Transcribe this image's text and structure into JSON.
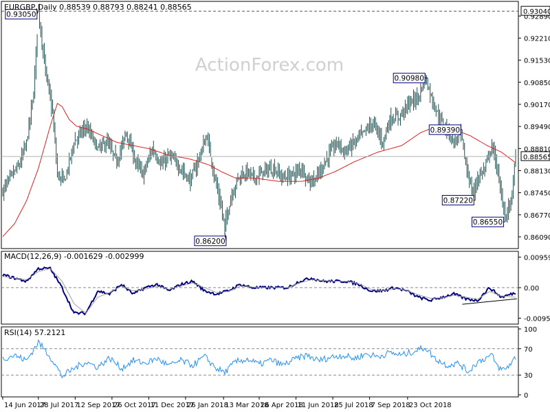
{
  "symbol_header": "EURGBP,Daily  0.88539 0.88793 0.88241 0.88565",
  "watermark": "ActionForex.com",
  "colors": {
    "candle": "#1f4f4f",
    "ma": "#e01e1e",
    "macd": "#000080",
    "signal": "#a0a0a0",
    "rsi": "#1e90ff",
    "label_border": "#000080",
    "last_price_bg": "#ffffff"
  },
  "chart_data": [
    {
      "type": "candlestick",
      "title": "EURGBP,Daily",
      "ohlc_last": {
        "open": 0.88539,
        "high": 0.88793,
        "low": 0.88241,
        "close": 0.88565
      },
      "ylim": [
        0.8573,
        0.9334
      ],
      "y_ticks": [
        "0.92890",
        "0.92210",
        "0.91530",
        "0.90850",
        "0.90170",
        "0.89490",
        "0.88810",
        "0.88130",
        "0.87450",
        "0.86770",
        "0.86090"
      ],
      "x_ticks": [
        "14 Jun 2017",
        "28 Jul 2017",
        "12 Sep 2017",
        "26 Oct 2017",
        "11 Dec 2017",
        "26 Jan 2018",
        "13 Mar 2018",
        "26 Apr 2018",
        "11 Jun 2018",
        "25 Jul 2018",
        "7 Sep 2018",
        "23 Oct 2018"
      ],
      "hlines": [
        {
          "value": 0.9304,
          "label": "0.93040"
        },
        {
          "value": 0.88565,
          "label": "0.88565"
        }
      ],
      "annotations": [
        {
          "label": "0.93050",
          "value": 0.9305,
          "date_index": 30
        },
        {
          "label": "0.86200",
          "value": 0.862,
          "date_index": 187
        },
        {
          "label": "0.90980",
          "value": 0.9098,
          "date_index": 358
        },
        {
          "label": "0.89390",
          "value": 0.8939,
          "date_index": 387
        },
        {
          "label": "0.87220",
          "value": 0.8722,
          "date_index": 398
        },
        {
          "label": "0.86550",
          "value": 0.8655,
          "date_index": 423
        }
      ],
      "price_anchors": [
        [
          0,
          0.875
        ],
        [
          6,
          0.879
        ],
        [
          14,
          0.883
        ],
        [
          20,
          0.89
        ],
        [
          26,
          0.905
        ],
        [
          30,
          0.9305
        ],
        [
          36,
          0.912
        ],
        [
          42,
          0.899
        ],
        [
          46,
          0.88
        ],
        [
          52,
          0.878
        ],
        [
          60,
          0.89
        ],
        [
          70,
          0.895
        ],
        [
          80,
          0.888
        ],
        [
          88,
          0.89
        ],
        [
          96,
          0.884
        ],
        [
          104,
          0.893
        ],
        [
          112,
          0.884
        ],
        [
          118,
          0.88
        ],
        [
          126,
          0.888
        ],
        [
          134,
          0.883
        ],
        [
          140,
          0.886
        ],
        [
          150,
          0.882
        ],
        [
          158,
          0.878
        ],
        [
          166,
          0.886
        ],
        [
          172,
          0.892
        ],
        [
          178,
          0.88
        ],
        [
          184,
          0.87
        ],
        [
          187,
          0.864
        ],
        [
          192,
          0.873
        ],
        [
          198,
          0.879
        ],
        [
          206,
          0.881
        ],
        [
          212,
          0.879
        ],
        [
          220,
          0.881
        ],
        [
          228,
          0.882
        ],
        [
          236,
          0.879
        ],
        [
          244,
          0.88
        ],
        [
          252,
          0.882
        ],
        [
          258,
          0.878
        ],
        [
          264,
          0.879
        ],
        [
          270,
          0.883
        ],
        [
          276,
          0.887
        ],
        [
          282,
          0.89
        ],
        [
          288,
          0.887
        ],
        [
          296,
          0.89
        ],
        [
          304,
          0.893
        ],
        [
          312,
          0.896
        ],
        [
          320,
          0.89
        ],
        [
          326,
          0.897
        ],
        [
          334,
          0.898
        ],
        [
          342,
          0.902
        ],
        [
          350,
          0.904
        ],
        [
          356,
          0.9098
        ],
        [
          362,
          0.903
        ],
        [
          368,
          0.897
        ],
        [
          374,
          0.894
        ],
        [
          380,
          0.89
        ],
        [
          386,
          0.893
        ],
        [
          390,
          0.883
        ],
        [
          396,
          0.874
        ],
        [
          400,
          0.879
        ],
        [
          406,
          0.882
        ],
        [
          412,
          0.889
        ],
        [
          416,
          0.883
        ],
        [
          420,
          0.873
        ],
        [
          424,
          0.867
        ],
        [
          428,
          0.872
        ],
        [
          432,
          0.8857
        ]
      ],
      "ma_anchors": [
        [
          0,
          0.861
        ],
        [
          10,
          0.865
        ],
        [
          20,
          0.872
        ],
        [
          30,
          0.882
        ],
        [
          40,
          0.895
        ],
        [
          46,
          0.902
        ],
        [
          50,
          0.901
        ],
        [
          56,
          0.897
        ],
        [
          62,
          0.895
        ],
        [
          72,
          0.894
        ],
        [
          84,
          0.892
        ],
        [
          96,
          0.89
        ],
        [
          110,
          0.889
        ],
        [
          124,
          0.888
        ],
        [
          140,
          0.886
        ],
        [
          156,
          0.885
        ],
        [
          166,
          0.884
        ],
        [
          174,
          0.883
        ],
        [
          184,
          0.881
        ],
        [
          196,
          0.879
        ],
        [
          212,
          0.879
        ],
        [
          232,
          0.878
        ],
        [
          252,
          0.878
        ],
        [
          266,
          0.879
        ],
        [
          280,
          0.881
        ],
        [
          296,
          0.884
        ],
        [
          316,
          0.887
        ],
        [
          336,
          0.889
        ],
        [
          352,
          0.893
        ],
        [
          366,
          0.895
        ],
        [
          380,
          0.894
        ],
        [
          394,
          0.892
        ],
        [
          408,
          0.889
        ],
        [
          420,
          0.887
        ],
        [
          432,
          0.8837
        ]
      ]
    },
    {
      "type": "line",
      "title": "MACD(12,26,9) -0.001629 -0.002999",
      "ylim": [
        -0.01143,
        0.0114
      ],
      "y_ticks": [
        "0.009593",
        "0.00",
        "-0.009562"
      ],
      "series": [
        {
          "role": "macd",
          "anchors": [
            [
              0,
              0.004
            ],
            [
              20,
              0.002
            ],
            [
              30,
              0.006
            ],
            [
              40,
              0.006
            ],
            [
              50,
              0.0
            ],
            [
              60,
              -0.008
            ],
            [
              70,
              -0.008
            ],
            [
              80,
              -0.001
            ],
            [
              90,
              -0.002
            ],
            [
              100,
              0.001
            ],
            [
              110,
              -0.002
            ],
            [
              120,
              0.0
            ],
            [
              130,
              0.001
            ],
            [
              140,
              -0.001
            ],
            [
              150,
              0.001
            ],
            [
              160,
              0.002
            ],
            [
              170,
              -0.001
            ],
            [
              180,
              -0.002
            ],
            [
              190,
              -0.001
            ],
            [
              200,
              0.001
            ],
            [
              210,
              0.0
            ],
            [
              220,
              0.0
            ],
            [
              230,
              0.0
            ],
            [
              240,
              0.0
            ],
            [
              250,
              0.002
            ],
            [
              260,
              0.003
            ],
            [
              270,
              0.002
            ],
            [
              280,
              0.002
            ],
            [
              290,
              0.002
            ],
            [
              300,
              0.001
            ],
            [
              310,
              -0.001
            ],
            [
              320,
              -0.001
            ],
            [
              330,
              0.0
            ],
            [
              340,
              -0.001
            ],
            [
              350,
              -0.003
            ],
            [
              360,
              -0.004
            ],
            [
              370,
              -0.003
            ],
            [
              380,
              -0.002
            ],
            [
              390,
              -0.0035
            ],
            [
              400,
              -0.004
            ],
            [
              410,
              0.0
            ],
            [
              420,
              -0.003
            ],
            [
              432,
              -0.0016
            ]
          ]
        },
        {
          "role": "signal",
          "anchors": [
            [
              0,
              0.0035
            ],
            [
              20,
              0.0025
            ],
            [
              30,
              0.005
            ],
            [
              40,
              0.006
            ],
            [
              50,
              0.002
            ],
            [
              60,
              -0.005
            ],
            [
              70,
              -0.008
            ],
            [
              80,
              -0.003
            ],
            [
              90,
              -0.0015
            ],
            [
              100,
              0.0005
            ],
            [
              110,
              -0.001
            ],
            [
              120,
              -0.0005
            ],
            [
              130,
              0.0005
            ],
            [
              140,
              -0.0005
            ],
            [
              150,
              0.0005
            ],
            [
              160,
              0.0015
            ],
            [
              170,
              0.0
            ],
            [
              180,
              -0.0015
            ],
            [
              190,
              -0.0012
            ],
            [
              200,
              0.0005
            ],
            [
              210,
              0.0002
            ],
            [
              220,
              0.0
            ],
            [
              230,
              0.0
            ],
            [
              240,
              0.0
            ],
            [
              250,
              0.0015
            ],
            [
              260,
              0.0025
            ],
            [
              270,
              0.0022
            ],
            [
              280,
              0.002
            ],
            [
              290,
              0.002
            ],
            [
              300,
              0.0012
            ],
            [
              310,
              -0.0005
            ],
            [
              320,
              -0.001
            ],
            [
              330,
              -0.0003
            ],
            [
              340,
              -0.0008
            ],
            [
              350,
              -0.0022
            ],
            [
              360,
              -0.0033
            ],
            [
              370,
              -0.0032
            ],
            [
              380,
              -0.0024
            ],
            [
              390,
              -0.003
            ],
            [
              400,
              -0.0036
            ],
            [
              410,
              -0.0012
            ],
            [
              420,
              -0.0026
            ],
            [
              432,
              -0.003
            ]
          ]
        }
      ],
      "trendline": [
        [
          387,
          -0.0052
        ],
        [
          432,
          -0.0035
        ]
      ]
    },
    {
      "type": "line",
      "title": "RSI(14) 57.2121",
      "ylim": [
        0,
        100
      ],
      "y_ticks": [
        "100",
        "70",
        "30",
        "0"
      ],
      "levels": [
        70,
        30
      ],
      "series": [
        {
          "role": "rsi",
          "anchors": [
            [
              0,
              55
            ],
            [
              10,
              60
            ],
            [
              20,
              52
            ],
            [
              30,
              80
            ],
            [
              40,
              58
            ],
            [
              50,
              28
            ],
            [
              60,
              40
            ],
            [
              70,
              50
            ],
            [
              80,
              42
            ],
            [
              90,
              56
            ],
            [
              100,
              40
            ],
            [
              110,
              52
            ],
            [
              120,
              48
            ],
            [
              130,
              55
            ],
            [
              140,
              44
            ],
            [
              150,
              52
            ],
            [
              160,
              45
            ],
            [
              170,
              58
            ],
            [
              180,
              40
            ],
            [
              187,
              34
            ],
            [
              196,
              50
            ],
            [
              206,
              54
            ],
            [
              216,
              46
            ],
            [
              226,
              53
            ],
            [
              236,
              45
            ],
            [
              246,
              54
            ],
            [
              256,
              60
            ],
            [
              266,
              52
            ],
            [
              276,
              57
            ],
            [
              286,
              60
            ],
            [
              296,
              55
            ],
            [
              306,
              62
            ],
            [
              316,
              58
            ],
            [
              326,
              64
            ],
            [
              336,
              60
            ],
            [
              346,
              66
            ],
            [
              356,
              72
            ],
            [
              364,
              55
            ],
            [
              374,
              45
            ],
            [
              384,
              48
            ],
            [
              392,
              35
            ],
            [
              400,
              50
            ],
            [
              406,
              55
            ],
            [
              412,
              60
            ],
            [
              416,
              45
            ],
            [
              420,
              38
            ],
            [
              424,
              40
            ],
            [
              428,
              48
            ],
            [
              432,
              57
            ]
          ]
        }
      ]
    }
  ]
}
